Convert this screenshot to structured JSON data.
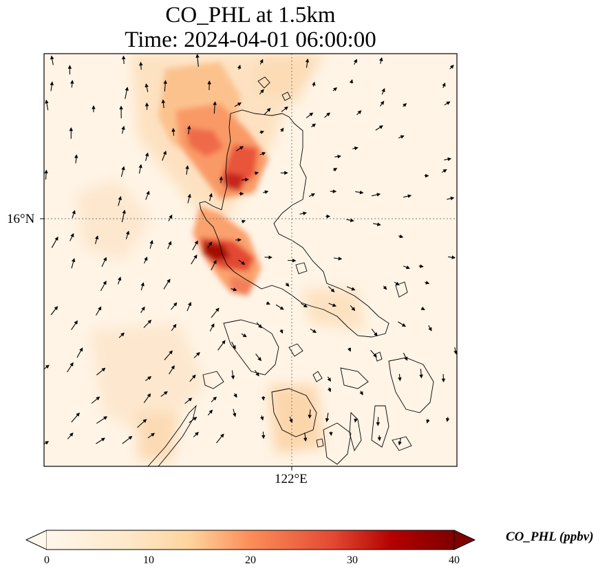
{
  "title": {
    "line1": "CO_PHL at 1.5km",
    "line2": "Time: 2024-04-01 06:00:00"
  },
  "map": {
    "lat_label": "16°N",
    "lon_label": "122°E",
    "gridline_style": "dotted",
    "colormap": "OrRd",
    "variable": "CO_PHL",
    "features": [
      "coastlines",
      "wind-vectors",
      "concentration-field"
    ]
  },
  "colorbar": {
    "label": "CO_PHL (ppbv)",
    "min": 0,
    "max": 40,
    "extend": "both",
    "ticks": [
      "0",
      "10",
      "20",
      "30",
      "40"
    ],
    "colors": [
      "#fff7ec",
      "#fdd49e",
      "#fc8d59",
      "#d7301f",
      "#7f0000"
    ]
  }
}
